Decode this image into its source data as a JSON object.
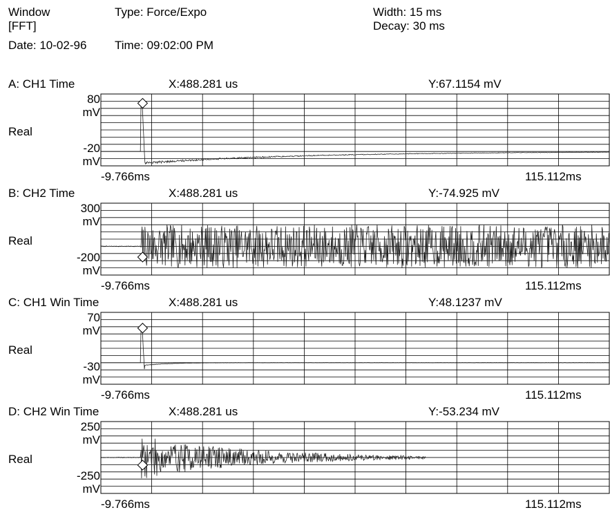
{
  "header": {
    "measurement_label": "Window",
    "measurement_sub": "[FFT]",
    "type_label": "Type: Force/Expo",
    "width_label": "Width: 15 ms",
    "decay_label": "Decay: 30 ms",
    "date_label": "Date: 10-02-96",
    "time_label": "Time: 09:02:00 PM"
  },
  "chart_data": [
    {
      "type": "line",
      "trace": "A: CH1 Time",
      "part": "Real",
      "x_readout": "X:488.281 us",
      "y_readout": "Y:67.1154 mV",
      "y_top_label": "80",
      "y_bottom_label": "-20",
      "y_unit": "mV",
      "x_start_label": "-9.766ms",
      "x_end_label": "115.112ms",
      "xlim_ms": [
        -9.766,
        115.112
      ],
      "ylim": [
        -20,
        80
      ],
      "marker_x_ms": 0.488,
      "marker_y": 67.1154,
      "grid": true,
      "waveform": "impulse",
      "amp": 18,
      "tau_ms": 40,
      "seed": 3
    },
    {
      "type": "line",
      "trace": "B: CH2 Time",
      "part": "Real",
      "x_readout": "X:488.281 us",
      "y_readout": "Y:-74.925 mV",
      "y_top_label": "300",
      "y_bottom_label": "-200",
      "y_unit": "mV",
      "x_start_label": "-9.766ms",
      "x_end_label": "115.112ms",
      "xlim_ms": [
        -9.766,
        115.112
      ],
      "ylim": [
        -200,
        300
      ],
      "marker_x_ms": 0.488,
      "marker_y": -74.925,
      "grid": true,
      "waveform": "noise",
      "amp": 150,
      "tau_ms": 1000,
      "seed": 7
    },
    {
      "type": "line",
      "trace": "C: CH1 Win Time",
      "part": "Real",
      "x_readout": "X:488.281 us",
      "y_readout": "Y:48.1237 mV",
      "y_top_label": "70",
      "y_bottom_label": "-30",
      "y_unit": "mV",
      "x_start_label": "-9.766ms",
      "x_end_label": "115.112ms",
      "xlim_ms": [
        -9.766,
        115.112
      ],
      "ylim": [
        -30,
        70
      ],
      "marker_x_ms": 0.488,
      "marker_y": 48.1237,
      "grid": true,
      "waveform": "impulse",
      "amp": 4,
      "tau_ms": 6,
      "seed": 11
    },
    {
      "type": "line",
      "trace": "D: CH2 Win Time",
      "part": "Real",
      "x_readout": "X:488.281 us",
      "y_readout": "Y:-53.234 mV",
      "y_top_label": "250",
      "y_bottom_label": "-250",
      "y_unit": "mV",
      "x_start_label": "-9.766ms",
      "x_end_label": "115.112ms",
      "xlim_ms": [
        -9.766,
        115.112
      ],
      "ylim": [
        -250,
        250
      ],
      "marker_x_ms": 0.488,
      "marker_y": -53.234,
      "grid": true,
      "waveform": "decaying-noise",
      "amp": 150,
      "tau_ms": 28,
      "seed": 19
    }
  ]
}
